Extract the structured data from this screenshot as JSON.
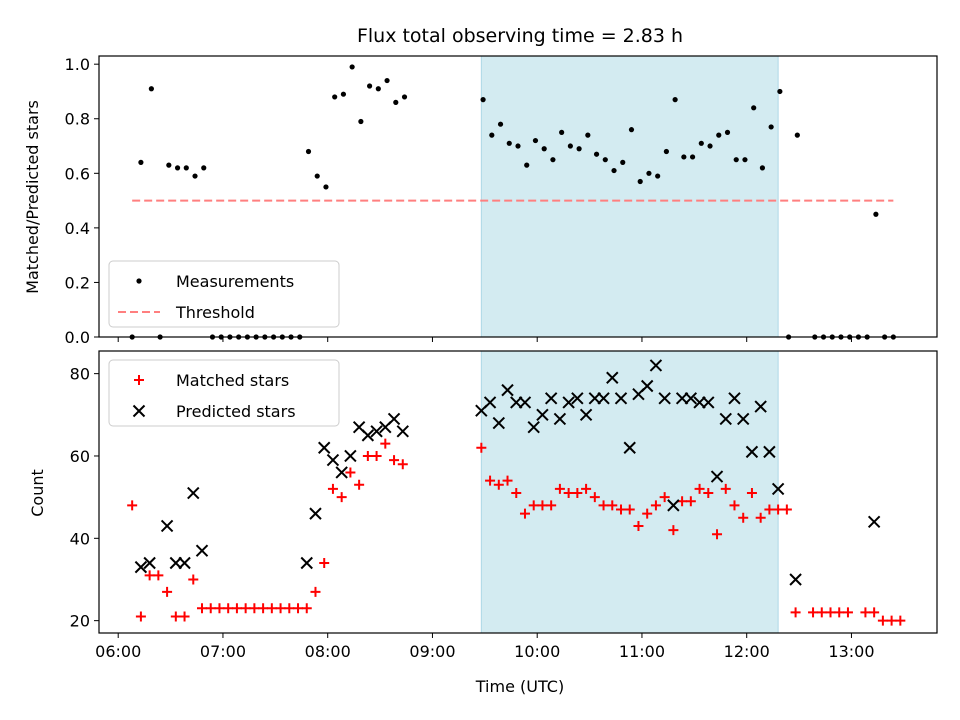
{
  "chart_data": [
    {
      "type": "scatter",
      "title": "Flux total observing time = 2.83 h",
      "xlabel": "",
      "ylabel": "Matched/Predicted stars",
      "xlim": [
        "05:49",
        "13:49"
      ],
      "ylim": [
        0,
        1.03
      ],
      "x_unit": "time (UTC), hours of day",
      "xticks": [
        "06:00",
        "07:00",
        "08:00",
        "09:00",
        "10:00",
        "11:00",
        "12:00",
        "13:00"
      ],
      "yticks": [
        "0.0",
        "0.2",
        "0.4",
        "0.6",
        "0.8",
        "1.0"
      ],
      "highlight_span": {
        "start": "09:28",
        "end": "12:18",
        "color": "#d3ebf1"
      },
      "legend": {
        "placement": "lower-left",
        "entries": [
          "Measurements",
          "Threshold"
        ]
      },
      "series": [
        {
          "name": "Measurements",
          "marker": "dot",
          "color": "#000000",
          "points": [
            [
              "06:08",
              0.0
            ],
            [
              "06:13",
              0.64
            ],
            [
              "06:19",
              0.91
            ],
            [
              "06:24",
              0.0
            ],
            [
              "06:29",
              0.63
            ],
            [
              "06:34",
              0.62
            ],
            [
              "06:39",
              0.62
            ],
            [
              "06:44",
              0.59
            ],
            [
              "06:49",
              0.62
            ],
            [
              "06:54",
              0.0
            ],
            [
              "06:59",
              0.0
            ],
            [
              "07:04",
              0.0
            ],
            [
              "07:09",
              0.0
            ],
            [
              "07:14",
              0.0
            ],
            [
              "07:19",
              0.0
            ],
            [
              "07:24",
              0.0
            ],
            [
              "07:29",
              0.0
            ],
            [
              "07:34",
              0.0
            ],
            [
              "07:39",
              0.0
            ],
            [
              "07:44",
              0.0
            ],
            [
              "07:49",
              0.68
            ],
            [
              "07:54",
              0.59
            ],
            [
              "07:59",
              0.55
            ],
            [
              "08:04",
              0.88
            ],
            [
              "08:09",
              0.89
            ],
            [
              "08:14",
              0.99
            ],
            [
              "08:19",
              0.79
            ],
            [
              "08:24",
              0.92
            ],
            [
              "08:29",
              0.91
            ],
            [
              "08:34",
              0.94
            ],
            [
              "08:39",
              0.86
            ],
            [
              "08:44",
              0.88
            ],
            [
              "09:29",
              0.87
            ],
            [
              "09:34",
              0.74
            ],
            [
              "09:39",
              0.78
            ],
            [
              "09:44",
              0.71
            ],
            [
              "09:49",
              0.7
            ],
            [
              "09:54",
              0.63
            ],
            [
              "09:59",
              0.72
            ],
            [
              "10:04",
              0.69
            ],
            [
              "10:09",
              0.65
            ],
            [
              "10:14",
              0.75
            ],
            [
              "10:19",
              0.7
            ],
            [
              "10:24",
              0.69
            ],
            [
              "10:29",
              0.74
            ],
            [
              "10:34",
              0.67
            ],
            [
              "10:39",
              0.65
            ],
            [
              "10:44",
              0.61
            ],
            [
              "10:49",
              0.64
            ],
            [
              "10:54",
              0.76
            ],
            [
              "10:59",
              0.57
            ],
            [
              "11:04",
              0.6
            ],
            [
              "11:09",
              0.59
            ],
            [
              "11:14",
              0.68
            ],
            [
              "11:19",
              0.87
            ],
            [
              "11:24",
              0.66
            ],
            [
              "11:29",
              0.66
            ],
            [
              "11:34",
              0.71
            ],
            [
              "11:39",
              0.7
            ],
            [
              "11:44",
              0.74
            ],
            [
              "11:49",
              0.75
            ],
            [
              "11:54",
              0.65
            ],
            [
              "11:59",
              0.65
            ],
            [
              "12:04",
              0.84
            ],
            [
              "12:09",
              0.62
            ],
            [
              "12:14",
              0.77
            ],
            [
              "12:19",
              0.9
            ],
            [
              "12:24",
              0.0
            ],
            [
              "12:29",
              0.74
            ],
            [
              "12:39",
              0.0
            ],
            [
              "12:44",
              0.0
            ],
            [
              "12:49",
              0.0
            ],
            [
              "12:54",
              0.0
            ],
            [
              "12:59",
              0.0
            ],
            [
              "13:04",
              0.0
            ],
            [
              "13:09",
              0.0
            ],
            [
              "13:14",
              0.45
            ],
            [
              "13:19",
              0.0
            ],
            [
              "13:24",
              0.0
            ]
          ]
        },
        {
          "name": "Threshold",
          "marker": "dashed-line",
          "color": "#ff7f7f",
          "points": [
            [
              "06:08",
              0.5
            ],
            [
              "13:24",
              0.5
            ]
          ]
        }
      ]
    },
    {
      "type": "scatter",
      "title": "",
      "xlabel": "Time (UTC)",
      "ylabel": "Count",
      "xlim": [
        "05:49",
        "13:49"
      ],
      "ylim": [
        17,
        85.5
      ],
      "x_unit": "time (UTC), hours of day",
      "xticks": [
        "06:00",
        "07:00",
        "08:00",
        "09:00",
        "10:00",
        "11:00",
        "12:00",
        "13:00"
      ],
      "yticks": [
        "20",
        "40",
        "60",
        "80"
      ],
      "highlight_span": {
        "start": "09:28",
        "end": "12:18",
        "color": "#d3ebf1"
      },
      "legend": {
        "placement": "upper-left",
        "entries": [
          "Matched stars",
          "Predicted stars"
        ]
      },
      "series": [
        {
          "name": "Matched stars",
          "marker": "plus",
          "color": "#ff0000",
          "points": [
            [
              "06:08",
              48
            ],
            [
              "06:13",
              21
            ],
            [
              "06:18",
              31
            ],
            [
              "06:23",
              31
            ],
            [
              "06:28",
              27
            ],
            [
              "06:33",
              21
            ],
            [
              "06:38",
              21
            ],
            [
              "06:43",
              30
            ],
            [
              "06:48",
              23
            ],
            [
              "06:53",
              23
            ],
            [
              "06:58",
              23
            ],
            [
              "07:03",
              23
            ],
            [
              "07:08",
              23
            ],
            [
              "07:13",
              23
            ],
            [
              "07:18",
              23
            ],
            [
              "07:23",
              23
            ],
            [
              "07:28",
              23
            ],
            [
              "07:33",
              23
            ],
            [
              "07:38",
              23
            ],
            [
              "07:43",
              23
            ],
            [
              "07:48",
              23
            ],
            [
              "07:53",
              27
            ],
            [
              "07:58",
              34
            ],
            [
              "08:03",
              52
            ],
            [
              "08:08",
              50
            ],
            [
              "08:13",
              56
            ],
            [
              "08:18",
              53
            ],
            [
              "08:23",
              60
            ],
            [
              "08:28",
              60
            ],
            [
              "08:33",
              63
            ],
            [
              "08:38",
              59
            ],
            [
              "08:43",
              58
            ],
            [
              "09:28",
              62
            ],
            [
              "09:33",
              54
            ],
            [
              "09:38",
              53
            ],
            [
              "09:43",
              54
            ],
            [
              "09:48",
              51
            ],
            [
              "09:53",
              46
            ],
            [
              "09:58",
              48
            ],
            [
              "10:03",
              48
            ],
            [
              "10:08",
              48
            ],
            [
              "10:13",
              52
            ],
            [
              "10:18",
              51
            ],
            [
              "10:23",
              51
            ],
            [
              "10:28",
              52
            ],
            [
              "10:33",
              50
            ],
            [
              "10:38",
              48
            ],
            [
              "10:43",
              48
            ],
            [
              "10:48",
              47
            ],
            [
              "10:53",
              47
            ],
            [
              "10:58",
              43
            ],
            [
              "11:03",
              46
            ],
            [
              "11:08",
              48
            ],
            [
              "11:13",
              50
            ],
            [
              "11:18",
              42
            ],
            [
              "11:23",
              49
            ],
            [
              "11:28",
              49
            ],
            [
              "11:33",
              52
            ],
            [
              "11:38",
              51
            ],
            [
              "11:43",
              41
            ],
            [
              "11:48",
              52
            ],
            [
              "11:53",
              48
            ],
            [
              "11:58",
              45
            ],
            [
              "12:03",
              51
            ],
            [
              "12:08",
              45
            ],
            [
              "12:13",
              47
            ],
            [
              "12:18",
              47
            ],
            [
              "12:23",
              47
            ],
            [
              "12:28",
              22
            ],
            [
              "12:38",
              22
            ],
            [
              "12:43",
              22
            ],
            [
              "12:48",
              22
            ],
            [
              "12:53",
              22
            ],
            [
              "12:58",
              22
            ],
            [
              "13:08",
              22
            ],
            [
              "13:13",
              22
            ],
            [
              "13:18",
              20
            ],
            [
              "13:23",
              20
            ],
            [
              "13:28",
              20
            ]
          ]
        },
        {
          "name": "Predicted stars",
          "marker": "x",
          "color": "#000000",
          "points": [
            [
              "06:13",
              33
            ],
            [
              "06:18",
              34
            ],
            [
              "06:28",
              43
            ],
            [
              "06:33",
              34
            ],
            [
              "06:38",
              34
            ],
            [
              "06:43",
              51
            ],
            [
              "06:48",
              37
            ],
            [
              "07:48",
              34
            ],
            [
              "07:53",
              46
            ],
            [
              "07:58",
              62
            ],
            [
              "08:03",
              59
            ],
            [
              "08:08",
              56
            ],
            [
              "08:13",
              60
            ],
            [
              "08:18",
              67
            ],
            [
              "08:23",
              65
            ],
            [
              "08:28",
              66
            ],
            [
              "08:33",
              67
            ],
            [
              "08:38",
              69
            ],
            [
              "08:43",
              66
            ],
            [
              "09:28",
              71
            ],
            [
              "09:33",
              73
            ],
            [
              "09:38",
              68
            ],
            [
              "09:43",
              76
            ],
            [
              "09:48",
              73
            ],
            [
              "09:53",
              73
            ],
            [
              "09:58",
              67
            ],
            [
              "10:03",
              70
            ],
            [
              "10:08",
              74
            ],
            [
              "10:13",
              69
            ],
            [
              "10:18",
              73
            ],
            [
              "10:23",
              74
            ],
            [
              "10:28",
              70
            ],
            [
              "10:33",
              74
            ],
            [
              "10:38",
              74
            ],
            [
              "10:43",
              79
            ],
            [
              "10:48",
              74
            ],
            [
              "10:53",
              62
            ],
            [
              "10:58",
              75
            ],
            [
              "11:03",
              77
            ],
            [
              "11:08",
              82
            ],
            [
              "11:13",
              74
            ],
            [
              "11:18",
              48
            ],
            [
              "11:23",
              74
            ],
            [
              "11:28",
              74
            ],
            [
              "11:33",
              73
            ],
            [
              "11:38",
              73
            ],
            [
              "11:43",
              55
            ],
            [
              "11:48",
              69
            ],
            [
              "11:53",
              74
            ],
            [
              "11:58",
              69
            ],
            [
              "12:03",
              61
            ],
            [
              "12:08",
              72
            ],
            [
              "12:13",
              61
            ],
            [
              "12:18",
              52
            ],
            [
              "12:28",
              30
            ],
            [
              "13:13",
              44
            ]
          ]
        }
      ]
    }
  ]
}
